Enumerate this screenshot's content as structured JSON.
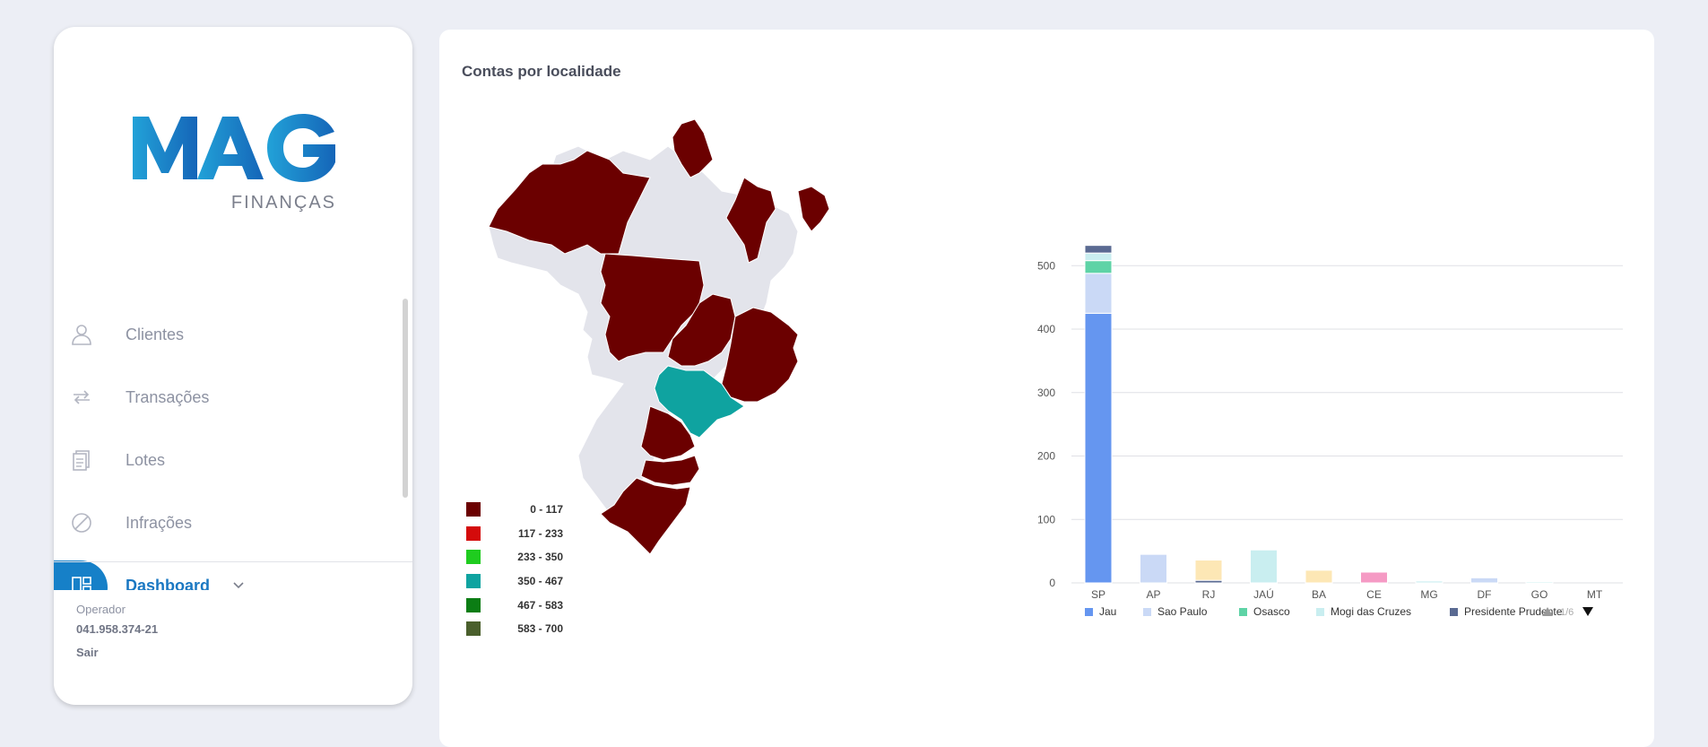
{
  "sidebar": {
    "logo": {
      "brand": "MAG",
      "subtitle": "FINANÇAS"
    },
    "items": [
      {
        "label": "Clientes",
        "icon": "user-icon"
      },
      {
        "label": "Transações",
        "icon": "transfer-icon"
      },
      {
        "label": "Lotes",
        "icon": "documents-icon"
      },
      {
        "label": "Infrações",
        "icon": "forbidden-icon"
      },
      {
        "label": "Dashboard",
        "icon": "dashboard-icon"
      }
    ],
    "operator_label": "Operador",
    "operator_id": "041.958.374-21",
    "logout": "Sair"
  },
  "main": {
    "title": "Contas por localidade",
    "map_legend": [
      {
        "label": "0 - 117",
        "color": "#6b0000"
      },
      {
        "label": "117 - 233",
        "color": "#d40b0b"
      },
      {
        "label": "233 - 350",
        "color": "#1fcc1f"
      },
      {
        "label": "350 - 467",
        "color": "#0fa3a0"
      },
      {
        "label": "467 - 583",
        "color": "#0b7d14"
      },
      {
        "label": "583 - 700",
        "color": "#4a5f2c"
      }
    ],
    "legend_page": "1/6"
  },
  "chart_data": {
    "type": "bar",
    "stacked": true,
    "categories": [
      "SP",
      "AP",
      "RJ",
      "JAÚ",
      "BA",
      "CE",
      "MG",
      "DF",
      "GO",
      "MT"
    ],
    "ylim": [
      0,
      540
    ],
    "yticks": [
      0,
      100,
      200,
      300,
      400,
      500
    ],
    "legend_position": "bottom",
    "grid": true,
    "series": [
      {
        "name": "Jau",
        "color": "#6596f0",
        "values": [
          425,
          0,
          0,
          0,
          0,
          0,
          0,
          0,
          0,
          0
        ]
      },
      {
        "name": "Sao Paulo",
        "color": "#cad9f6",
        "values": [
          63,
          45,
          0,
          0,
          0,
          0,
          0,
          8,
          0,
          0
        ]
      },
      {
        "name": "Osasco",
        "color": "#5ed3a6",
        "values": [
          20,
          0,
          0,
          0,
          0,
          0,
          0,
          0,
          0,
          0
        ]
      },
      {
        "name": "Mogi das Cruzes",
        "color": "#c9eef0",
        "values": [
          12,
          0,
          0,
          52,
          0,
          0,
          3,
          0,
          2,
          0
        ]
      },
      {
        "name": "Presidente Prudente",
        "color": "#5a6a92",
        "values": [
          12,
          0,
          4,
          0,
          0,
          0,
          0,
          0,
          0,
          0
        ]
      },
      {
        "name": "",
        "color": "#fde7b5",
        "values": [
          0,
          0,
          32,
          0,
          20,
          0,
          0,
          0,
          0,
          0
        ]
      },
      {
        "name": "",
        "color": "#f59ac4",
        "values": [
          0,
          0,
          0,
          0,
          0,
          17,
          0,
          0,
          0,
          0
        ]
      }
    ]
  }
}
